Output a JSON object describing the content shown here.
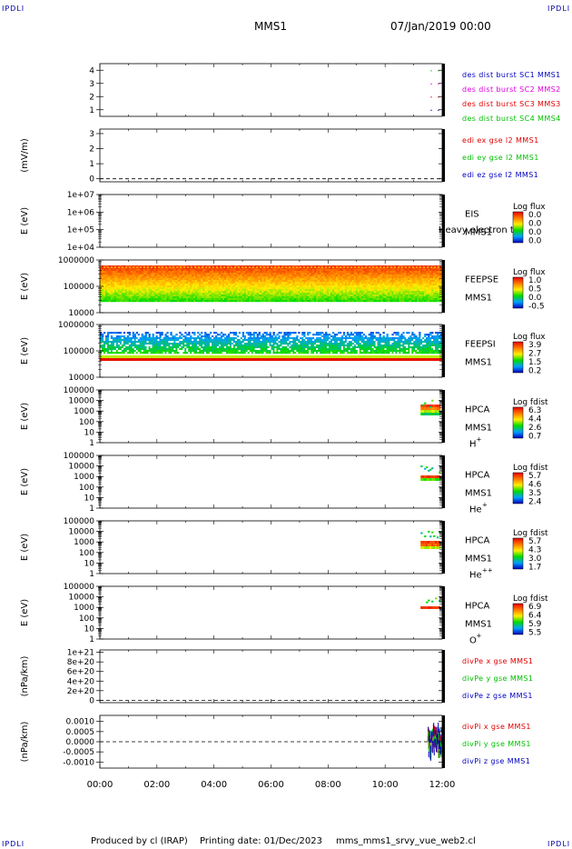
{
  "header": {
    "mission": "MMS1",
    "datetime": "07/Jan/2019 00:00"
  },
  "corner_mark": "IPDLI",
  "footer": {
    "produced": "Produced by cl (IRAP)",
    "printing": "Printing date: 01/Dec/2023",
    "script": "mms_mms1_srvy_vue_web2.cl"
  },
  "time_axis": {
    "ticks": [
      "00:00",
      "02:00",
      "04:00",
      "06:00",
      "08:00",
      "10:00",
      "12:00"
    ],
    "range_hours": [
      0,
      12
    ]
  },
  "colors": {
    "red": "#e00000",
    "green": "#00c000",
    "blue": "#0000c0",
    "magenta": "#e000e0",
    "black": "#000000"
  },
  "chart_data": [
    {
      "type": "scatter",
      "ylabel": "",
      "ylim": [
        0.5,
        4.5
      ],
      "yticks": [
        "4",
        "3",
        "2",
        "1"
      ],
      "legend": [
        {
          "name": "des dist burst SC1 MMS1",
          "color": "#0000c0"
        },
        {
          "name": "des dist burst SC2 MMS2",
          "color": "#e000e0"
        },
        {
          "name": "des dist burst SC3 MMS3",
          "color": "#e00000"
        },
        {
          "name": "des dist burst SC4 MMS4",
          "color": "#00c000"
        }
      ]
    },
    {
      "type": "line",
      "ylabel": "(mV/m)",
      "ylim": [
        -0.2,
        3.3
      ],
      "yticks": [
        "3",
        "2",
        "1",
        "0"
      ],
      "legend": [
        {
          "name": "edi ex gse l2 MMS1",
          "color": "#e00000"
        },
        {
          "name": "edi ey gse l2 MMS1",
          "color": "#00c000"
        },
        {
          "name": "edi ez gse l2 MMS1",
          "color": "#0000c0"
        }
      ]
    },
    {
      "type": "heatmap",
      "ylabel": "E (eV)",
      "scale": "log",
      "yticks": [
        "1e+07",
        "1e+06",
        "1e+05",
        "1e+04"
      ],
      "instrument": "EIS",
      "sc": "MMS1",
      "note": "Heavy electron to",
      "colorbar": {
        "title": "Log flux",
        "ticks": [
          "0.0",
          "0.0",
          "0.0",
          "0.0"
        ]
      }
    },
    {
      "type": "heatmap",
      "ylabel": "E (eV)",
      "scale": "log",
      "yticks": [
        "1000000",
        "100000",
        "10000"
      ],
      "instrument": "FEEPSE",
      "sc": "MMS1",
      "colorbar": {
        "title": "Log flux",
        "ticks": [
          "1.0",
          "0.5",
          "0.0",
          "-0.5"
        ]
      }
    },
    {
      "type": "heatmap",
      "ylabel": "E (eV)",
      "scale": "log",
      "yticks": [
        "1000000",
        "100000",
        "10000"
      ],
      "instrument": "FEEPSI",
      "sc": "MMS1",
      "colorbar": {
        "title": "Log flux",
        "ticks": [
          "3.9",
          "2.7",
          "1.5",
          "0.2"
        ]
      }
    },
    {
      "type": "heatmap",
      "ylabel": "E (eV)",
      "scale": "log",
      "yticks": [
        "100000",
        "10000",
        "1000",
        "100",
        "10",
        "1"
      ],
      "instrument": "HPCA",
      "sc": "MMS1",
      "species": "H",
      "charge": "+",
      "colorbar": {
        "title": "Log fdist",
        "ticks": [
          "6.3",
          "4.4",
          "2.6",
          "0.7"
        ]
      }
    },
    {
      "type": "heatmap",
      "ylabel": "E (eV)",
      "scale": "log",
      "yticks": [
        "100000",
        "10000",
        "1000",
        "100",
        "10",
        "1"
      ],
      "instrument": "HPCA",
      "sc": "MMS1",
      "species": "He",
      "charge": "+",
      "colorbar": {
        "title": "Log fdist",
        "ticks": [
          "5.7",
          "4.6",
          "3.5",
          "2.4"
        ]
      }
    },
    {
      "type": "heatmap",
      "ylabel": "E (eV)",
      "scale": "log",
      "yticks": [
        "100000",
        "10000",
        "1000",
        "100",
        "10",
        "1"
      ],
      "instrument": "HPCA",
      "sc": "MMS1",
      "species": "He",
      "charge": "++",
      "colorbar": {
        "title": "Log fdist",
        "ticks": [
          "5.7",
          "4.3",
          "3.0",
          "1.7"
        ]
      }
    },
    {
      "type": "heatmap",
      "ylabel": "E (eV)",
      "scale": "log",
      "yticks": [
        "100000",
        "10000",
        "1000",
        "100",
        "10",
        "1"
      ],
      "instrument": "HPCA",
      "sc": "MMS1",
      "species": "O",
      "charge": "+",
      "colorbar": {
        "title": "Log fdist",
        "ticks": [
          "6.9",
          "6.4",
          "5.9",
          "5.5"
        ]
      }
    },
    {
      "type": "line",
      "ylabel": "(nPa/km)",
      "ylim": [
        -5e+19,
        1.05e+21
      ],
      "yticks": [
        "1e+21",
        "8e+20",
        "6e+20",
        "4e+20",
        "2e+20",
        "0"
      ],
      "legend": [
        {
          "name": "divPe x gse MMS1",
          "color": "#e00000"
        },
        {
          "name": "divPe y gse MMS1",
          "color": "#00c000"
        },
        {
          "name": "divPe z gse MMS1",
          "color": "#0000c0"
        }
      ]
    },
    {
      "type": "line",
      "ylabel": "(nPa/km)",
      "ylim": [
        -0.0013,
        0.0013
      ],
      "yticks": [
        "0.0010",
        "0.0005",
        "0.0000",
        "-0.0005",
        "-0.0010"
      ],
      "legend": [
        {
          "name": "divPi x gse MMS1",
          "color": "#e00000"
        },
        {
          "name": "divPi y gse MMS1",
          "color": "#00c000"
        },
        {
          "name": "divPi z gse MMS1",
          "color": "#0000c0"
        }
      ]
    }
  ]
}
